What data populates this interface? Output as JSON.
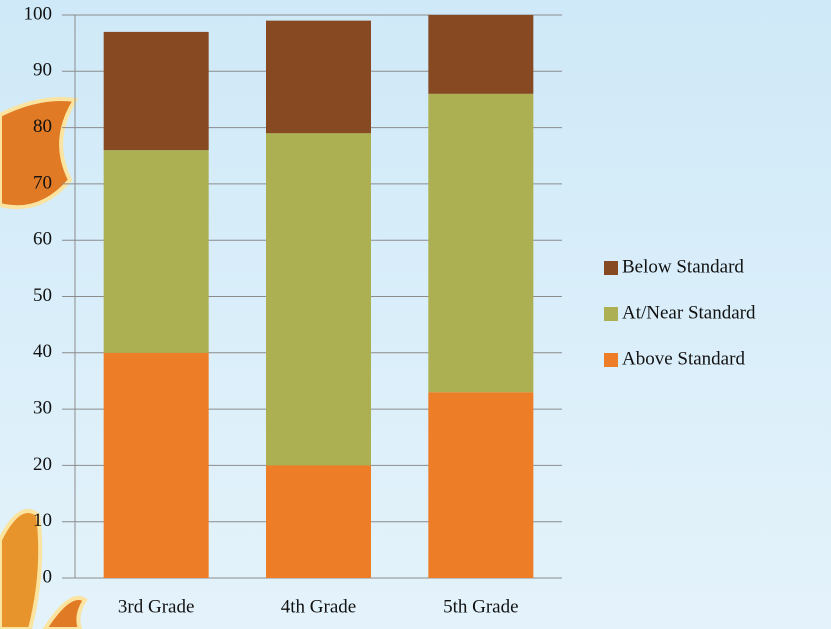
{
  "chart_data": {
    "type": "stacked_bar",
    "categories": [
      "3rd Grade",
      "4th Grade",
      "5th Grade"
    ],
    "series": [
      {
        "name": "Above Standard",
        "color": "#ed7d26",
        "values": [
          40,
          20,
          33
        ]
      },
      {
        "name": "At/Near Standard",
        "color": "#adb052",
        "values": [
          36,
          59,
          53
        ]
      },
      {
        "name": "Below Standard",
        "color": "#864921",
        "values": [
          21,
          20,
          14
        ]
      }
    ],
    "ylim": [
      0,
      100
    ],
    "yticks": [
      0,
      10,
      20,
      30,
      40,
      50,
      60,
      70,
      80,
      90,
      100
    ],
    "grid": true,
    "legend": "right"
  }
}
